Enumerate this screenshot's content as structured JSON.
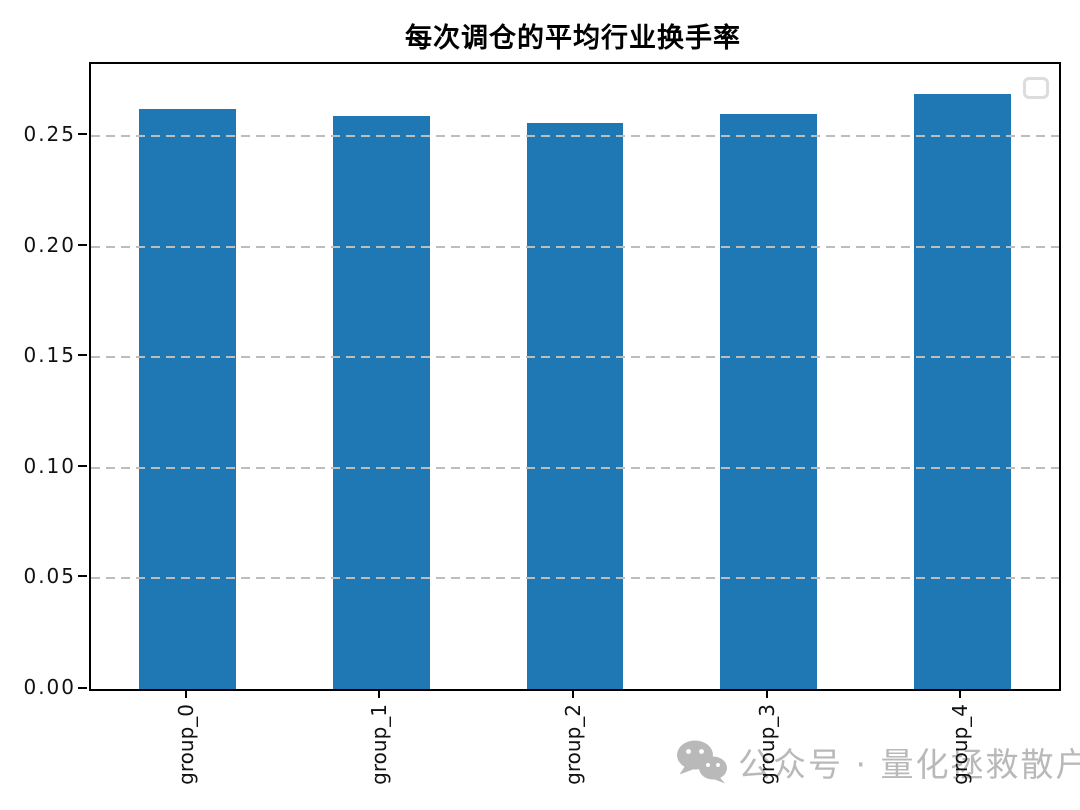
{
  "title": "每次调仓的平均行业换手率",
  "watermark": {
    "icon": "wechat-icon",
    "text": "公众号 · 量化拯救散户"
  },
  "legend": {
    "style": "empty-box-top-right"
  },
  "colors": {
    "bar": "#1f77b4",
    "gridline": "#bdbdbd",
    "spine": "#000000",
    "tick_label": "#111111",
    "watermark": "#b9b9b9",
    "legend_border": "#dcdcdc",
    "background": "#ffffff"
  },
  "chart_data": {
    "type": "bar",
    "title": "每次调仓的平均行业换手率",
    "categories": [
      "group_0",
      "group_1",
      "group_2",
      "group_3",
      "group_4"
    ],
    "values": [
      0.262,
      0.259,
      0.256,
      0.26,
      0.269
    ],
    "xlabel": "",
    "ylabel": "",
    "ylim": [
      0,
      0.2825
    ],
    "yticks": [
      0.0,
      0.05,
      0.1,
      0.15,
      0.2,
      0.25
    ],
    "ytick_labels": [
      "0.00",
      "0.05",
      "0.10",
      "0.15",
      "0.20",
      "0.25"
    ],
    "xtick_rotation": 90,
    "grid": "dashed-horizontal",
    "legend_position": "upper right",
    "bar_color": "#1f77b4",
    "bar_width_fraction": 0.5
  }
}
